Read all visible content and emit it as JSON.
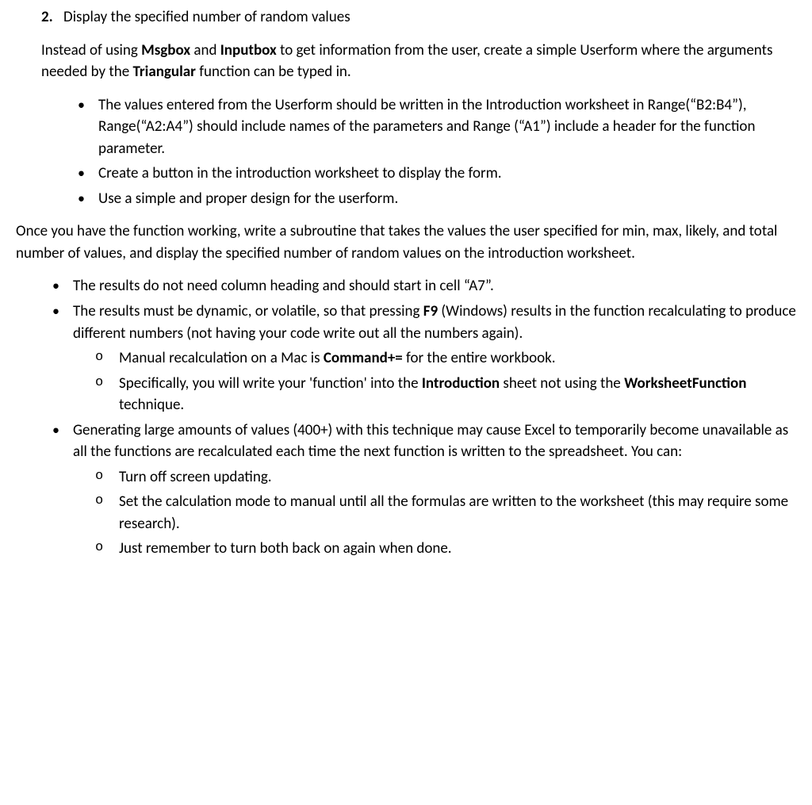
{
  "typography": {
    "font_family": "Calibri, 'Segoe UI', Arial, sans-serif",
    "font_size_pt": 14,
    "line_height": 1.45,
    "text_color": "#000000",
    "background_color": "#ffffff"
  },
  "header": {
    "number": "2.",
    "title": "Display the specified number of random values"
  },
  "intro_para": {
    "pre1": "Instead of using ",
    "b1": "Msgbox",
    "mid1": " and ",
    "b2": "Inputbox",
    "mid2": " to get information from the user, create a simple Userform where the arguments needed by the ",
    "b3": "Triangular",
    "post": " function can be typed in."
  },
  "list1": {
    "item1": "The values entered from the Userform should be written in the Introduction worksheet in Range(“B2:B4”), Range(“A2:A4”) should include names of the parameters and Range (“A1”) include a header for the function parameter.",
    "item2": "Create a button in the introduction worksheet to display the form.",
    "item3": "Use a simple and proper design for the userform."
  },
  "mid_para": "Once you have the function working, write a subroutine that takes the values the user specified for min, max, likely, and total number of values, and display the specified number of random values on the introduction worksheet.",
  "list2": {
    "item1": "The results do not need column heading and should start in cell “A7”.",
    "item2": {
      "pre": "The results must be dynamic, or volatile, so that pressing ",
      "b1": "F9",
      "post": " (Windows) results in the function recalculating to produce different numbers (not having your code write out all the numbers again)."
    },
    "item2_sub": {
      "s1": {
        "pre": "Manual recalculation on a Mac is ",
        "b1": "Command+=",
        "post": " for the entire workbook."
      },
      "s2": {
        "pre": "Specifically, you will write your 'function' into the ",
        "b1": "Introduction",
        "mid": " sheet not using the ",
        "b2": "WorksheetFunction",
        "post": " technique."
      }
    },
    "item3": "Generating large amounts of values (400+) with this technique may cause Excel to temporarily become unavailable as all the functions are recalculated each time the next function is written to the spreadsheet. You can:",
    "item3_sub": {
      "s1": "Turn off screen updating.",
      "s2": "Set the calculation mode to manual until all the formulas are written to the worksheet (this may require some research).",
      "s3": "Just remember to turn both back on again when done."
    }
  }
}
